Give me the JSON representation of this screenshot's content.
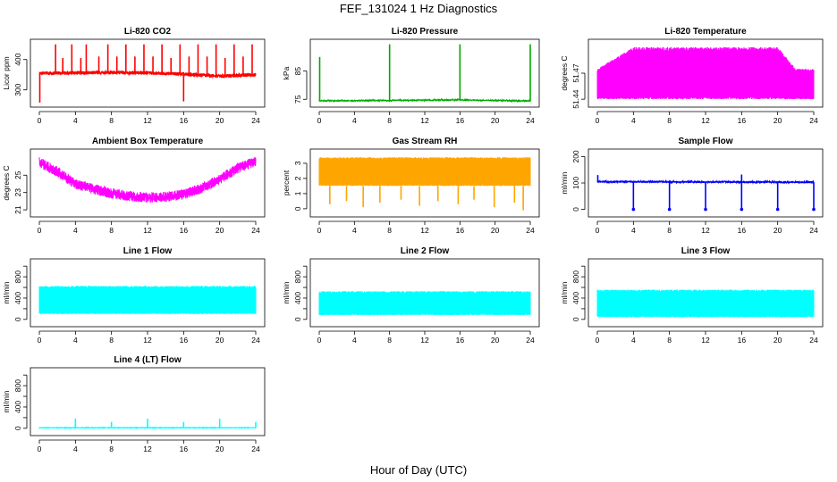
{
  "figure": {
    "title": "FEF_131024  1 Hz Diagnostics",
    "xlabel": "Hour of Day (UTC)"
  },
  "chart_data": [
    {
      "type": "line",
      "title": "Li-820 CO2",
      "ylabel": "Licor ppm",
      "color": "#ff0000",
      "xlim": [
        0,
        24
      ],
      "xticks": [
        0,
        4,
        8,
        12,
        16,
        20,
        24
      ],
      "ylim": [
        255,
        455
      ],
      "yticks": [
        300,
        400
      ],
      "baseline": [
        [
          0,
          355
        ],
        [
          4,
          356
        ],
        [
          8,
          357
        ],
        [
          12,
          356
        ],
        [
          16,
          352
        ],
        [
          20,
          345
        ],
        [
          24,
          350
        ]
      ],
      "noise": 6,
      "spikes": [
        [
          1.8,
          450
        ],
        [
          2.6,
          405
        ],
        [
          3.6,
          450
        ],
        [
          4.6,
          405
        ],
        [
          5.2,
          450
        ],
        [
          6.6,
          410
        ],
        [
          7.6,
          450
        ],
        [
          8.6,
          410
        ],
        [
          9.6,
          450
        ],
        [
          10.6,
          410
        ],
        [
          11.6,
          450
        ],
        [
          12.6,
          410
        ],
        [
          13.6,
          450
        ],
        [
          14.6,
          405
        ],
        [
          15.6,
          450
        ],
        [
          16.6,
          410
        ],
        [
          17.6,
          450
        ],
        [
          18.6,
          410
        ],
        [
          19.6,
          450
        ],
        [
          20.6,
          405
        ],
        [
          21.6,
          450
        ],
        [
          22.6,
          410
        ],
        [
          23.6,
          450
        ]
      ],
      "dips": [
        [
          0.05,
          258
        ],
        [
          16.0,
          262
        ]
      ]
    },
    {
      "type": "line",
      "title": "Li-820 Pressure",
      "ylabel": "kPa",
      "color": "#00aa00",
      "xlim": [
        0,
        24
      ],
      "xticks": [
        0,
        4,
        8,
        12,
        16,
        20,
        24
      ],
      "ylim": [
        73.5,
        95
      ],
      "yticks": [
        75,
        85
      ],
      "baseline": [
        [
          0,
          74.5
        ],
        [
          8,
          74.6
        ],
        [
          16,
          74.8
        ],
        [
          24,
          74.4
        ]
      ],
      "noise": 0.2,
      "spikes": [
        [
          0.05,
          90
        ],
        [
          8.0,
          94.5
        ],
        [
          16.0,
          94.5
        ],
        [
          24.0,
          94.5
        ]
      ],
      "dips": []
    },
    {
      "type": "line",
      "title": "Li-820 Temperature",
      "ylabel": "degrees C",
      "color": "#ff00ff",
      "xlim": [
        0,
        24
      ],
      "xticks": [
        0,
        4,
        8,
        12,
        16,
        20,
        24
      ],
      "ylim": [
        51.435,
        51.505
      ],
      "yticks": [
        51.44,
        51.47
      ],
      "ytickLabels": [
        "51.44",
        "51.47"
      ],
      "extraTickLabel": "51.47",
      "band": [
        [
          0,
          51.44,
          51.475
        ],
        [
          4,
          51.44,
          51.5
        ],
        [
          20,
          51.44,
          51.5
        ],
        [
          22,
          51.44,
          51.475
        ],
        [
          24,
          51.44,
          51.475
        ]
      ],
      "spikes": [],
      "dips": []
    },
    {
      "type": "line",
      "title": "Ambient Box Temperature",
      "ylabel": "degrees C",
      "color": "#ff00ff",
      "xlim": [
        0,
        24
      ],
      "xticks": [
        0,
        4,
        8,
        12,
        16,
        20,
        24
      ],
      "ylim": [
        20.6,
        27.6
      ],
      "yticks": [
        21,
        23,
        25
      ],
      "baseline": [
        [
          0,
          26.5
        ],
        [
          2,
          25.4
        ],
        [
          4,
          24.0
        ],
        [
          6,
          23.4
        ],
        [
          8,
          22.9
        ],
        [
          10,
          22.6
        ],
        [
          12,
          22.4
        ],
        [
          14,
          22.5
        ],
        [
          16,
          22.8
        ],
        [
          18,
          23.5
        ],
        [
          20,
          24.5
        ],
        [
          22,
          25.8
        ],
        [
          24,
          26.6
        ]
      ],
      "noise": 0.6,
      "spikes": [],
      "dips": []
    },
    {
      "type": "line",
      "title": "Gas Stream RH",
      "ylabel": "percent",
      "color": "#ffa500",
      "xlim": [
        0,
        24
      ],
      "xticks": [
        0,
        4,
        8,
        12,
        16,
        20,
        24
      ],
      "ylim": [
        -0.3,
        3.7
      ],
      "yticks": [
        0,
        1,
        2,
        3
      ],
      "band": [
        [
          0,
          1.5,
          3.4
        ],
        [
          24,
          1.5,
          3.4
        ]
      ],
      "spikes": [],
      "dips": [
        [
          1.2,
          0.3
        ],
        [
          3.1,
          0.5
        ],
        [
          5.0,
          0.1
        ],
        [
          6.9,
          0.4
        ],
        [
          9.3,
          0.6
        ],
        [
          11.4,
          0.2
        ],
        [
          13.5,
          0.5
        ],
        [
          15.8,
          0.3
        ],
        [
          17.6,
          0.6
        ],
        [
          19.9,
          0.1
        ],
        [
          22.2,
          0.4
        ],
        [
          23.2,
          -0.1
        ]
      ]
    },
    {
      "type": "line",
      "title": "Sample Flow",
      "ylabel": "ml/min",
      "color": "#0000ff",
      "xlim": [
        0,
        24
      ],
      "xticks": [
        0,
        4,
        8,
        12,
        16,
        20,
        24
      ],
      "ylim": [
        -15,
        215
      ],
      "yticks": [
        0,
        100,
        200
      ],
      "baseline": [
        [
          0,
          105
        ],
        [
          24,
          103
        ]
      ],
      "noise": 4,
      "spikes": [
        [
          0.05,
          130
        ],
        [
          16.0,
          132
        ]
      ],
      "dips": [
        [
          4.0,
          0
        ],
        [
          8.0,
          0
        ],
        [
          12.0,
          0
        ],
        [
          16.0,
          0
        ],
        [
          20.0,
          0
        ],
        [
          24.0,
          0
        ]
      ]
    },
    {
      "type": "line",
      "title": "Line 1 Flow",
      "ylabel": "ml/min",
      "color": "#00ffff",
      "xlim": [
        0,
        24
      ],
      "xticks": [
        0,
        4,
        8,
        12,
        16,
        20,
        24
      ],
      "ylim": [
        -70,
        1070
      ],
      "yticks": [
        0,
        200,
        400,
        600,
        800,
        1000
      ],
      "yticksShown": [
        0,
        400,
        800
      ],
      "band": [
        [
          0,
          100,
          630
        ],
        [
          24,
          100,
          630
        ]
      ],
      "spikes": [],
      "dips": []
    },
    {
      "type": "line",
      "title": "Line 2 Flow",
      "ylabel": "ml/min",
      "color": "#00ffff",
      "xlim": [
        0,
        24
      ],
      "xticks": [
        0,
        4,
        8,
        12,
        16,
        20,
        24
      ],
      "ylim": [
        -70,
        1070
      ],
      "yticks": [
        0,
        200,
        400,
        600,
        800,
        1000
      ],
      "yticksShown": [
        0,
        400,
        800
      ],
      "band": [
        [
          0,
          80,
          530
        ],
        [
          24,
          80,
          530
        ]
      ],
      "spikes": [],
      "dips": []
    },
    {
      "type": "line",
      "title": "Line 3 Flow",
      "ylabel": "ml/min",
      "color": "#00ffff",
      "xlim": [
        0,
        24
      ],
      "xticks": [
        0,
        4,
        8,
        12,
        16,
        20,
        24
      ],
      "ylim": [
        -70,
        1070
      ],
      "yticks": [
        0,
        200,
        400,
        600,
        800,
        1000
      ],
      "yticksShown": [
        0,
        400,
        800
      ],
      "band": [
        [
          0,
          40,
          560
        ],
        [
          24,
          40,
          560
        ]
      ],
      "spikes": [],
      "dips": []
    },
    {
      "type": "line",
      "title": "Line 4 (LT) Flow",
      "ylabel": "ml/min",
      "color": "#00ffff",
      "xlim": [
        0,
        24
      ],
      "xticks": [
        0,
        4,
        8,
        12,
        16,
        20,
        24
      ],
      "ylim": [
        -70,
        1070
      ],
      "yticks": [
        0,
        200,
        400,
        600,
        800,
        1000
      ],
      "yticksShown": [
        0,
        400,
        800
      ],
      "baseline": [
        [
          0,
          10
        ],
        [
          24,
          10
        ]
      ],
      "noise": 3,
      "spikes": [
        [
          4.0,
          180
        ],
        [
          8.0,
          120
        ],
        [
          12.0,
          180
        ],
        [
          16.0,
          120
        ],
        [
          20.0,
          180
        ],
        [
          24.0,
          120
        ]
      ],
      "dips": []
    }
  ]
}
